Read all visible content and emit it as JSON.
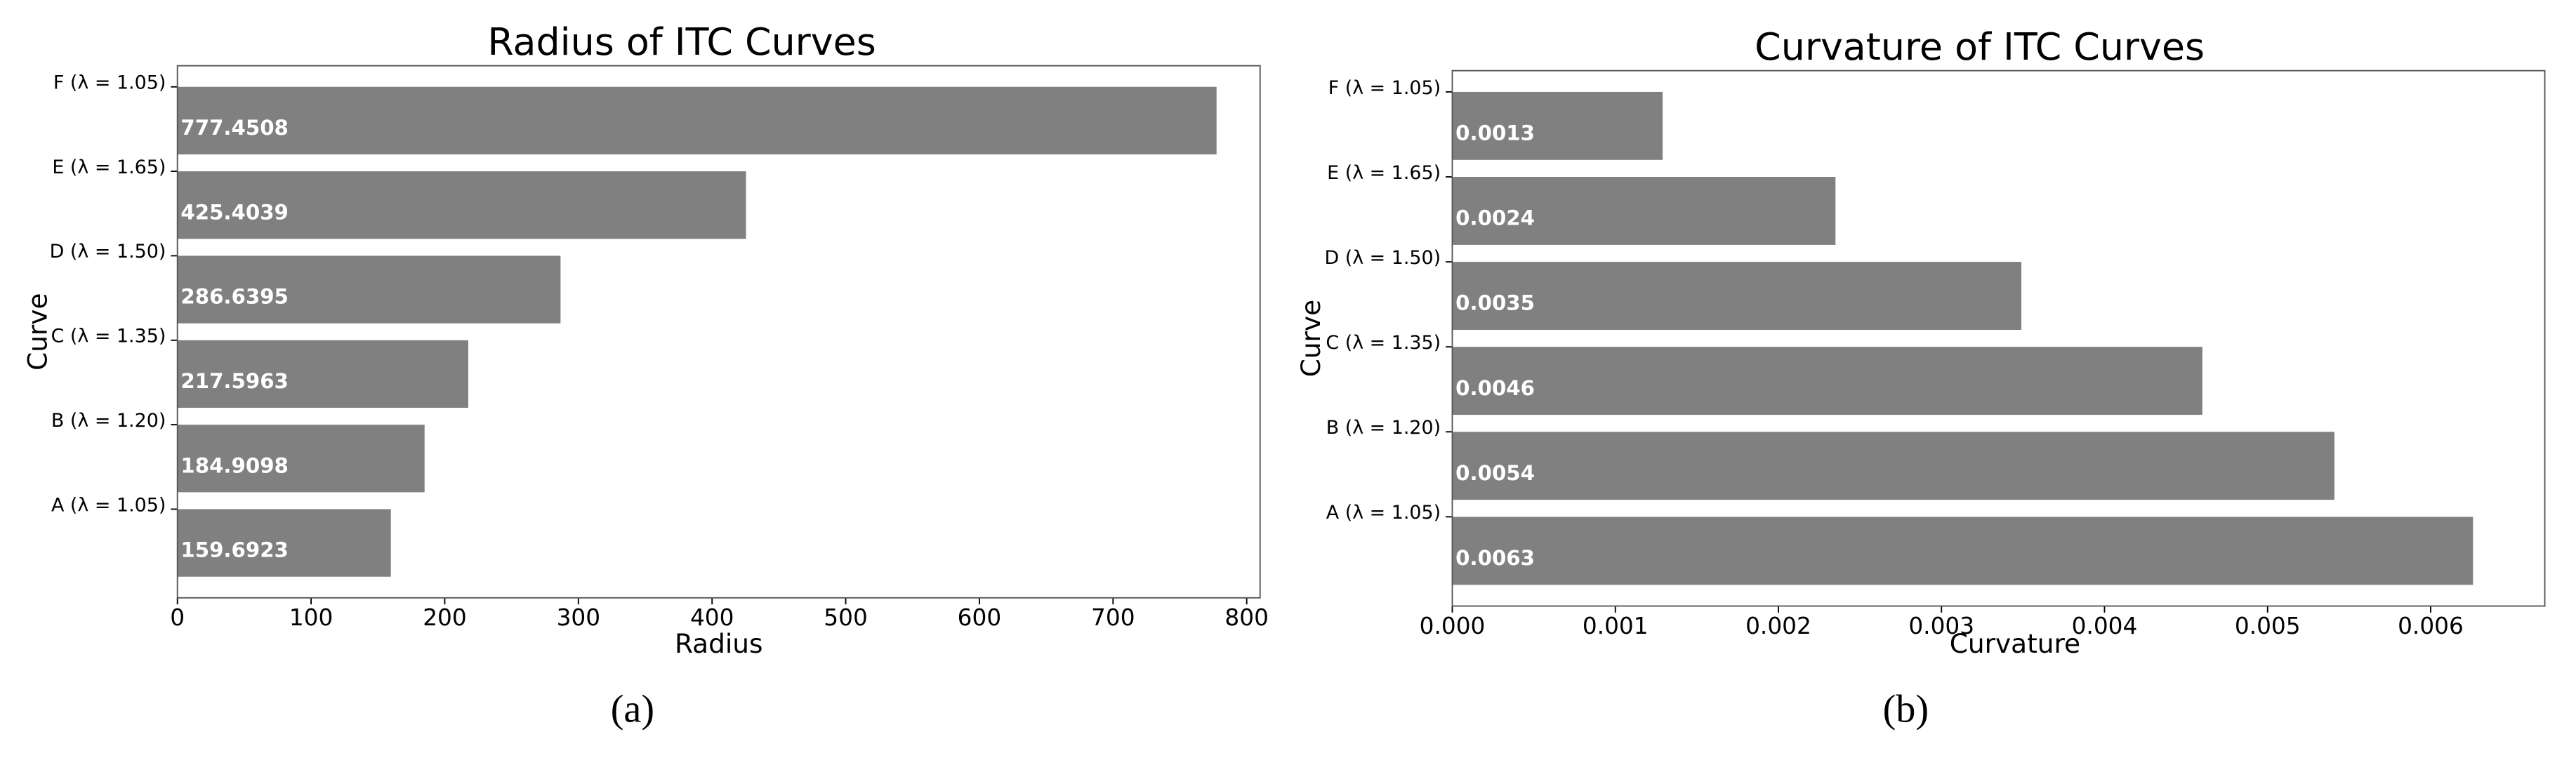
{
  "chart_data": [
    {
      "type": "barh",
      "title": "Radius of ITC Curves",
      "xlabel": "Radius",
      "ylabel": "Curve",
      "caption": "(a)",
      "categories": [
        "A (λ = 1.05)",
        "B (λ = 1.20)",
        "C (λ = 1.35)",
        "D (λ = 1.50)",
        "E (λ = 1.65)",
        "F (λ = 1.05)"
      ],
      "values": [
        159.6923,
        184.9098,
        217.5963,
        286.6395,
        425.4039,
        777.4508
      ],
      "color": "#808080",
      "xlim": [
        0,
        810
      ],
      "xticks": [
        0,
        100,
        200,
        300,
        400,
        500,
        600,
        700,
        800
      ]
    },
    {
      "type": "barh",
      "title": "Curvature of ITC Curves",
      "xlabel": "Curvature",
      "ylabel": "Curve",
      "caption": "(b)",
      "categories": [
        "A (λ = 1.05)",
        "B (λ = 1.20)",
        "C (λ = 1.35)",
        "D (λ = 1.50)",
        "E (λ = 1.65)",
        "F (λ = 1.05)"
      ],
      "values": [
        0.00626,
        0.00541,
        0.0046,
        0.00349,
        0.00235,
        0.00129
      ],
      "value_labels": [
        "0.0063",
        "0.0054",
        "0.0046",
        "0.0035",
        "0.0024",
        "0.0013"
      ],
      "color": "#808080",
      "xlim": [
        0,
        0.0067
      ],
      "xticks": [
        {
          "value": 0,
          "label": "0.000"
        },
        {
          "value": 0.001,
          "label": "0.001"
        },
        {
          "value": 0.002,
          "label": "0.002"
        },
        {
          "value": 0.003,
          "label": "0.003"
        },
        {
          "value": 0.004,
          "label": "0.004"
        },
        {
          "value": 0.005,
          "label": "0.005"
        },
        {
          "value": 0.006,
          "label": "0.006"
        }
      ]
    }
  ]
}
